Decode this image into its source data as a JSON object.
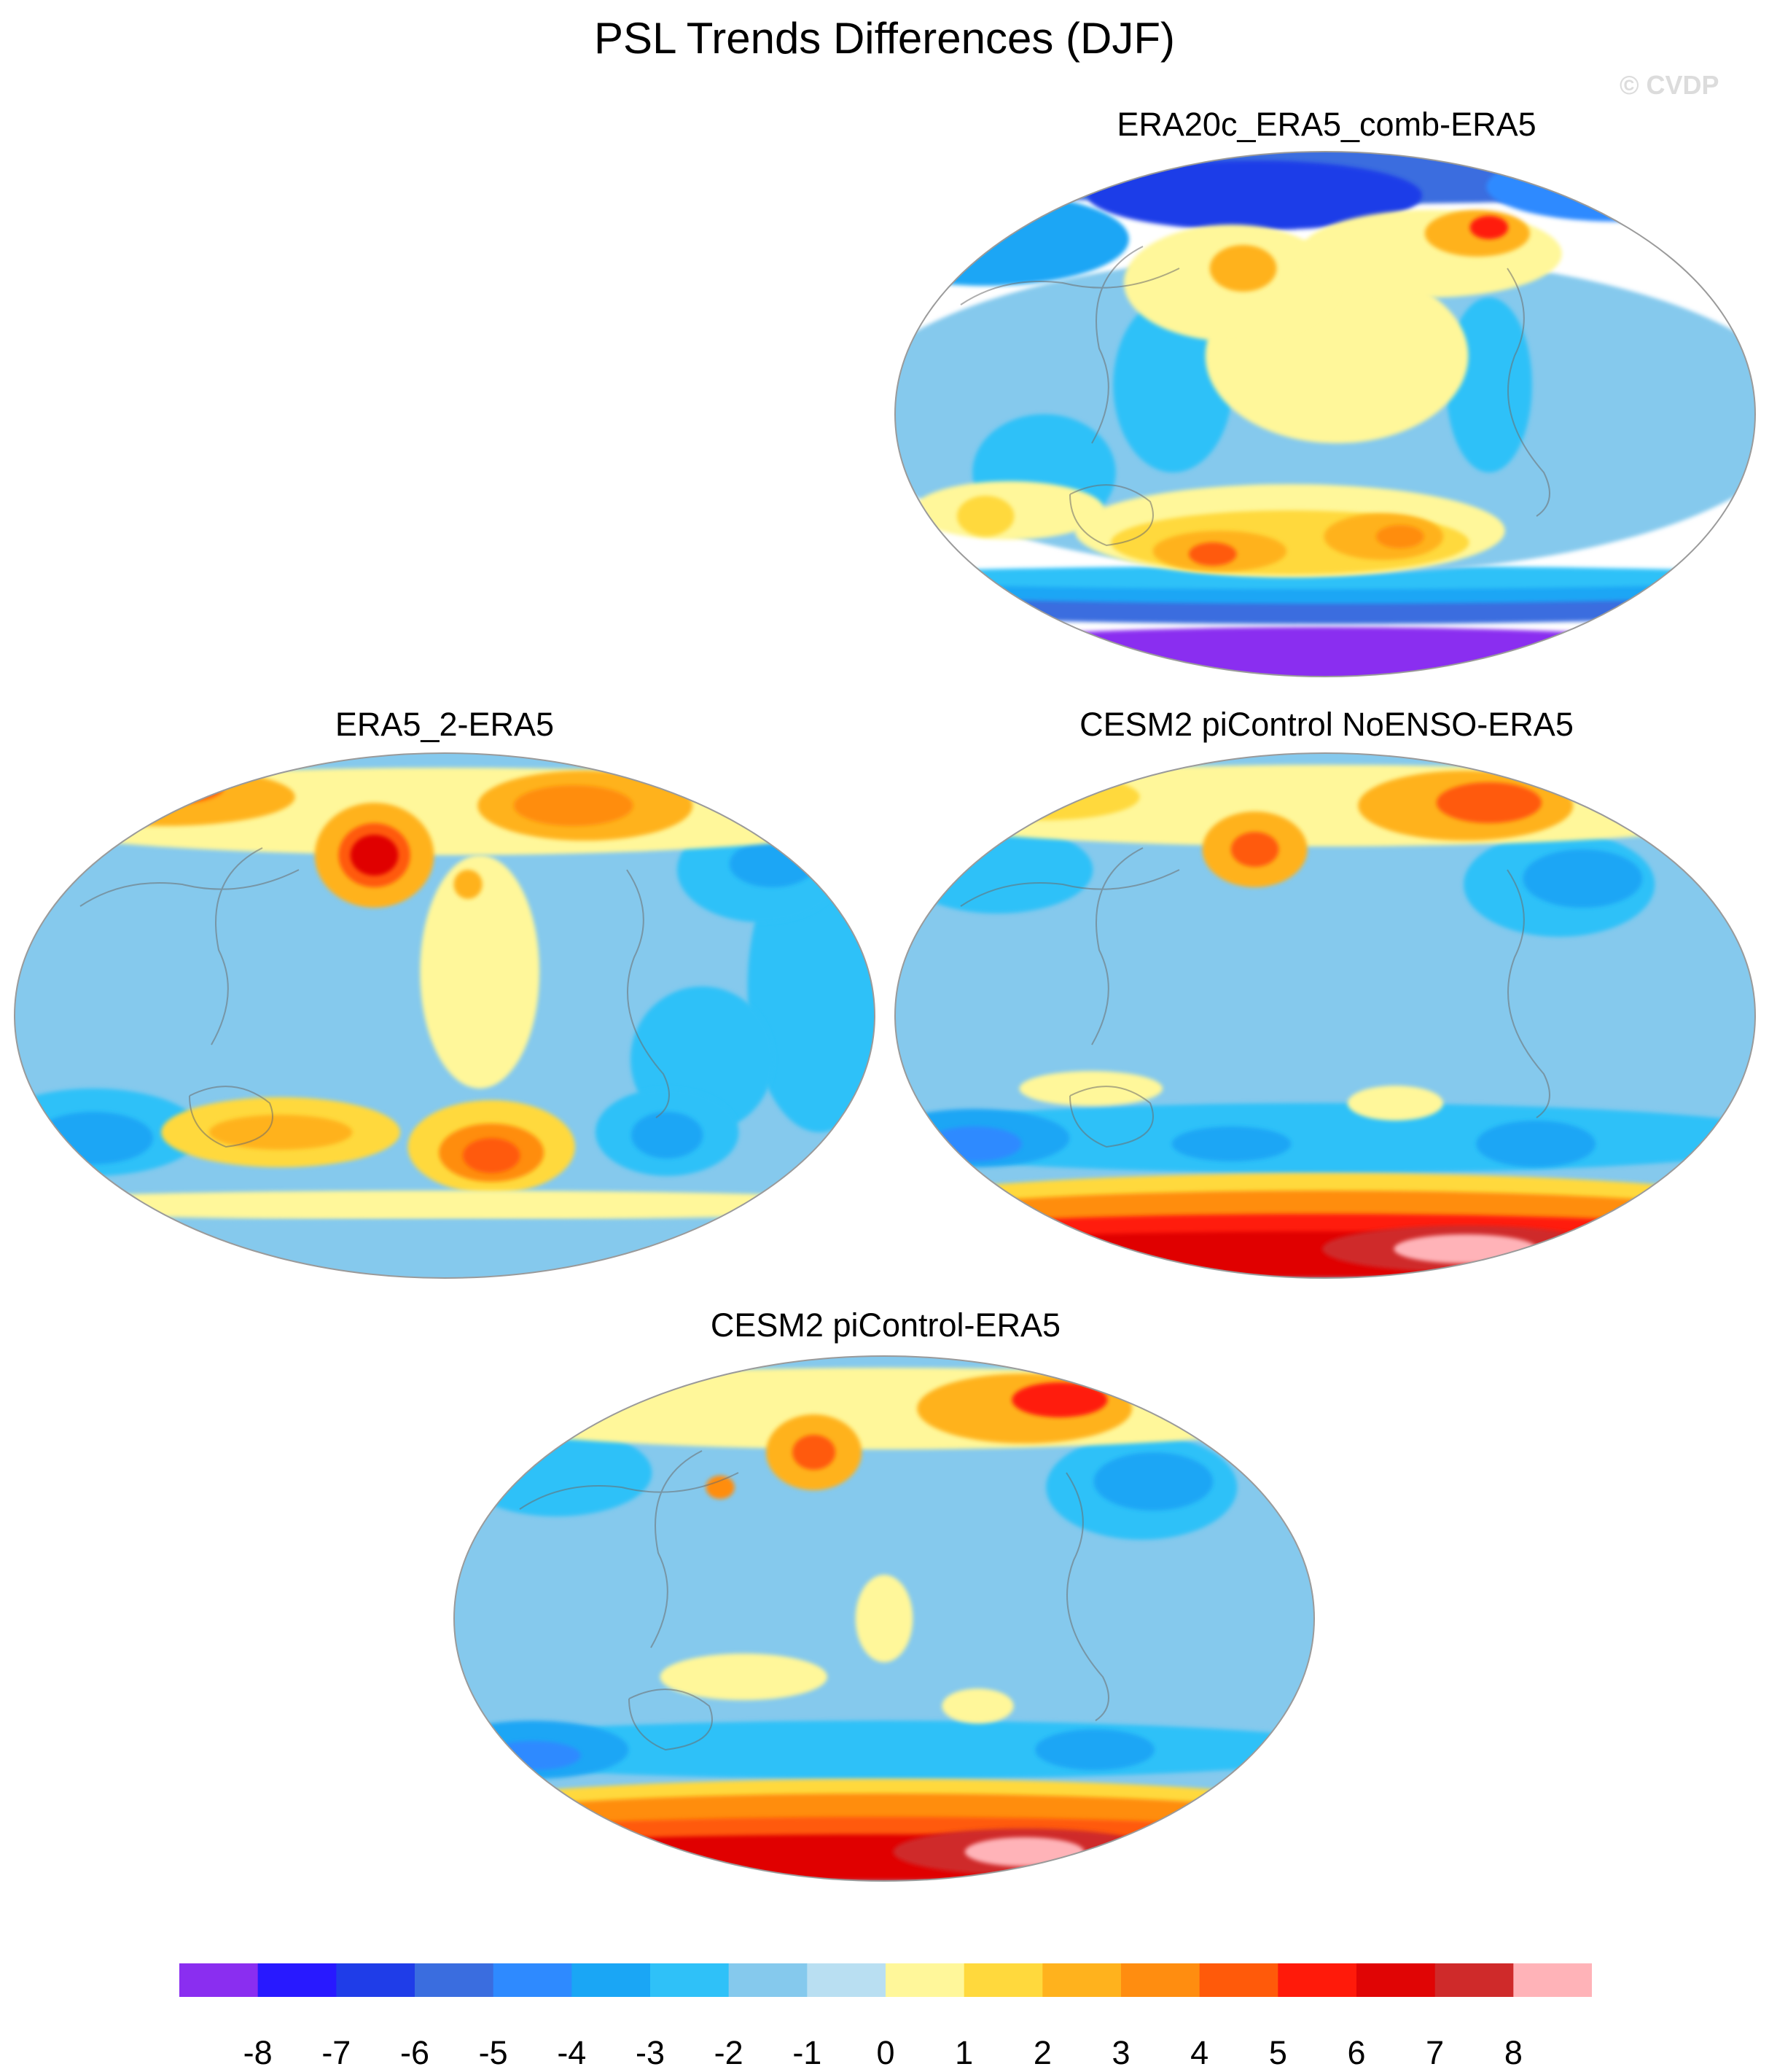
{
  "title": "PSL Trends Differences (DJF)",
  "watermark": "© CVDP",
  "panels": [
    {
      "id": "era20c",
      "title": "ERA20c_ERA5_comb-ERA5",
      "blobs": [
        {
          "lon": 0,
          "lat": -85,
          "rx": 200,
          "ry": 12,
          "c": -8
        },
        {
          "lon": 0,
          "lat": -66,
          "rx": 200,
          "ry": 6,
          "c": -5
        },
        {
          "lon": 0,
          "lat": -60,
          "rx": 200,
          "ry": 5,
          "c": -3
        },
        {
          "lon": 0,
          "lat": -56,
          "rx": 200,
          "ry": 4,
          "c": -2
        },
        {
          "lon": 0,
          "lat": 0,
          "rx": 200,
          "ry": 55,
          "c": -1
        },
        {
          "lon": 0,
          "lat": 82,
          "rx": 200,
          "ry": 10,
          "c": -5
        },
        {
          "lon": -30,
          "lat": 75,
          "rx": 70,
          "ry": 12,
          "c": -6
        },
        {
          "lon": -145,
          "lat": 60,
          "rx": 60,
          "ry": 16,
          "c": -3
        },
        {
          "lon": 125,
          "lat": 78,
          "rx": 55,
          "ry": 12,
          "c": -4
        },
        {
          "lon": 70,
          "lat": 10,
          "rx": 18,
          "ry": 30,
          "c": -2
        },
        {
          "lon": -65,
          "lat": 10,
          "rx": 25,
          "ry": 30,
          "c": -2
        },
        {
          "lon": -120,
          "lat": -20,
          "rx": 30,
          "ry": 20,
          "c": -2
        },
        {
          "lon": 5,
          "lat": 20,
          "rx": 55,
          "ry": 30,
          "c": 0
        },
        {
          "lon": -40,
          "lat": 45,
          "rx": 45,
          "ry": 20,
          "c": 0
        },
        {
          "lon": -35,
          "lat": 50,
          "rx": 14,
          "ry": 8,
          "c": 2
        },
        {
          "lon": 45,
          "lat": 55,
          "rx": 55,
          "ry": 15,
          "c": 0
        },
        {
          "lon": 65,
          "lat": 62,
          "rx": 22,
          "ry": 8,
          "c": 2
        },
        {
          "lon": 70,
          "lat": 64,
          "rx": 8,
          "ry": 4,
          "c": 5
        },
        {
          "lon": -135,
          "lat": -33,
          "rx": 40,
          "ry": 10,
          "c": 0
        },
        {
          "lon": -145,
          "lat": -35,
          "rx": 12,
          "ry": 7,
          "c": 1
        },
        {
          "lon": -15,
          "lat": -40,
          "rx": 90,
          "ry": 16,
          "c": 0
        },
        {
          "lon": -15,
          "lat": -44,
          "rx": 75,
          "ry": 11,
          "c": 1
        },
        {
          "lon": -45,
          "lat": -47,
          "rx": 28,
          "ry": 7,
          "c": 2
        },
        {
          "lon": -48,
          "lat": -48,
          "rx": 10,
          "ry": 4,
          "c": 4
        },
        {
          "lon": 25,
          "lat": -42,
          "rx": 25,
          "ry": 8,
          "c": 2
        },
        {
          "lon": 32,
          "lat": -42,
          "rx": 10,
          "ry": 4,
          "c": 3
        }
      ]
    },
    {
      "id": "era5_2",
      "title": "ERA5_2-ERA5",
      "blobs": [
        {
          "lon": 0,
          "lat": 0,
          "rx": 200,
          "ry": 100,
          "c": -1
        },
        {
          "lon": 160,
          "lat": 10,
          "rx": 30,
          "ry": 50,
          "c": -2
        },
        {
          "lon": 110,
          "lat": -15,
          "rx": 30,
          "ry": 25,
          "c": -2
        },
        {
          "lon": -150,
          "lat": -40,
          "rx": 45,
          "ry": 15,
          "c": -2
        },
        {
          "lon": -150,
          "lat": -42,
          "rx": 25,
          "ry": 9,
          "c": -3
        },
        {
          "lon": 95,
          "lat": -40,
          "rx": 30,
          "ry": 15,
          "c": -2
        },
        {
          "lon": 95,
          "lat": -41,
          "rx": 15,
          "ry": 8,
          "c": -3
        },
        {
          "lon": 135,
          "lat": 50,
          "rx": 35,
          "ry": 18,
          "c": -2
        },
        {
          "lon": 140,
          "lat": 52,
          "rx": 18,
          "ry": 8,
          "c": -3
        },
        {
          "lon": 15,
          "lat": 15,
          "rx": 25,
          "ry": 40,
          "c": 0
        },
        {
          "lon": 0,
          "lat": 70,
          "rx": 200,
          "ry": 15,
          "c": 0
        },
        {
          "lon": -120,
          "lat": 75,
          "rx": 55,
          "ry": 10,
          "c": 2
        },
        {
          "lon": -125,
          "lat": 78,
          "rx": 30,
          "ry": 6,
          "c": 4
        },
        {
          "lon": 60,
          "lat": 72,
          "rx": 45,
          "ry": 12,
          "c": 2
        },
        {
          "lon": 55,
          "lat": 72,
          "rx": 25,
          "ry": 7,
          "c": 3
        },
        {
          "lon": -30,
          "lat": 55,
          "rx": 25,
          "ry": 18,
          "c": 2
        },
        {
          "lon": -30,
          "lat": 55,
          "rx": 15,
          "ry": 11,
          "c": 4
        },
        {
          "lon": -30,
          "lat": 55,
          "rx": 10,
          "ry": 7,
          "c": 6
        },
        {
          "lon": 10,
          "lat": 45,
          "rx": 6,
          "ry": 5,
          "c": 2
        },
        {
          "lon": 20,
          "lat": -45,
          "rx": 35,
          "ry": 16,
          "c": 1
        },
        {
          "lon": 20,
          "lat": -47,
          "rx": 22,
          "ry": 10,
          "c": 3
        },
        {
          "lon": 20,
          "lat": -48,
          "rx": 12,
          "ry": 6,
          "c": 4
        },
        {
          "lon": -70,
          "lat": -40,
          "rx": 50,
          "ry": 12,
          "c": 1
        },
        {
          "lon": -70,
          "lat": -40,
          "rx": 30,
          "ry": 6,
          "c": 2
        },
        {
          "lon": 0,
          "lat": -65,
          "rx": 200,
          "ry": 5,
          "c": 0
        },
        {
          "lon": 0,
          "lat": -80,
          "rx": 200,
          "ry": 10,
          "c": -1
        }
      ]
    },
    {
      "id": "cesm2_noenso",
      "title": "CESM2 piControl NoENSO-ERA5",
      "blobs": [
        {
          "lon": 0,
          "lat": 0,
          "rx": 200,
          "ry": 100,
          "c": -1
        },
        {
          "lon": 0,
          "lat": -42,
          "rx": 200,
          "ry": 12,
          "c": -2
        },
        {
          "lon": -150,
          "lat": -42,
          "rx": 40,
          "ry": 10,
          "c": -3
        },
        {
          "lon": -150,
          "lat": -44,
          "rx": 20,
          "ry": 6,
          "c": -4
        },
        {
          "lon": -40,
          "lat": -44,
          "rx": 25,
          "ry": 6,
          "c": -3
        },
        {
          "lon": 90,
          "lat": -44,
          "rx": 25,
          "ry": 8,
          "c": -3
        },
        {
          "lon": 100,
          "lat": 45,
          "rx": 40,
          "ry": 18,
          "c": -2
        },
        {
          "lon": 110,
          "lat": 47,
          "rx": 25,
          "ry": 10,
          "c": -3
        },
        {
          "lon": -140,
          "lat": 50,
          "rx": 40,
          "ry": 15,
          "c": -2
        },
        {
          "lon": -100,
          "lat": -25,
          "rx": 30,
          "ry": 6,
          "c": 0
        },
        {
          "lon": 30,
          "lat": -30,
          "rx": 20,
          "ry": 6,
          "c": 0
        },
        {
          "lon": 0,
          "lat": 72,
          "rx": 200,
          "ry": 14,
          "c": 0
        },
        {
          "lon": 60,
          "lat": 72,
          "rx": 45,
          "ry": 12,
          "c": 2
        },
        {
          "lon": 70,
          "lat": 73,
          "rx": 22,
          "ry": 7,
          "c": 4
        },
        {
          "lon": -30,
          "lat": 57,
          "rx": 22,
          "ry": 13,
          "c": 2
        },
        {
          "lon": -30,
          "lat": 57,
          "rx": 10,
          "ry": 6,
          "c": 4
        },
        {
          "lon": -120,
          "lat": 75,
          "rx": 40,
          "ry": 8,
          "c": 1
        },
        {
          "lon": 0,
          "lat": -68,
          "rx": 200,
          "ry": 14,
          "c": 1
        },
        {
          "lon": 0,
          "lat": -72,
          "rx": 200,
          "ry": 12,
          "c": 3
        },
        {
          "lon": 0,
          "lat": -77,
          "rx": 200,
          "ry": 9,
          "c": 5
        },
        {
          "lon": 0,
          "lat": -82,
          "rx": 200,
          "ry": 8,
          "c": 6
        },
        {
          "lon": 60,
          "lat": -80,
          "rx": 60,
          "ry": 8,
          "c": 7
        },
        {
          "lon": 60,
          "lat": -80,
          "rx": 30,
          "ry": 5,
          "c": 8
        }
      ]
    },
    {
      "id": "cesm2",
      "title": "CESM2 piControl-ERA5",
      "blobs": [
        {
          "lon": 0,
          "lat": 0,
          "rx": 200,
          "ry": 100,
          "c": -1
        },
        {
          "lon": 0,
          "lat": -45,
          "rx": 200,
          "ry": 10,
          "c": -2
        },
        {
          "lon": -150,
          "lat": -45,
          "rx": 40,
          "ry": 10,
          "c": -3
        },
        {
          "lon": -150,
          "lat": -47,
          "rx": 20,
          "ry": 5,
          "c": -4
        },
        {
          "lon": 90,
          "lat": -45,
          "rx": 25,
          "ry": 7,
          "c": -3
        },
        {
          "lon": 110,
          "lat": 45,
          "rx": 40,
          "ry": 18,
          "c": -2
        },
        {
          "lon": 115,
          "lat": 47,
          "rx": 25,
          "ry": 10,
          "c": -3
        },
        {
          "lon": -140,
          "lat": 50,
          "rx": 40,
          "ry": 15,
          "c": -2
        },
        {
          "lon": -60,
          "lat": -20,
          "rx": 35,
          "ry": 8,
          "c": 0
        },
        {
          "lon": 0,
          "lat": 0,
          "rx": 12,
          "ry": 15,
          "c": 0
        },
        {
          "lon": 40,
          "lat": -30,
          "rx": 15,
          "ry": 6,
          "c": 0
        },
        {
          "lon": 0,
          "lat": 72,
          "rx": 200,
          "ry": 14,
          "c": 0
        },
        {
          "lon": 60,
          "lat": 72,
          "rx": 45,
          "ry": 12,
          "c": 2
        },
        {
          "lon": 75,
          "lat": 75,
          "rx": 20,
          "ry": 6,
          "c": 5
        },
        {
          "lon": -30,
          "lat": 57,
          "rx": 20,
          "ry": 13,
          "c": 2
        },
        {
          "lon": -30,
          "lat": 57,
          "rx": 9,
          "ry": 6,
          "c": 4
        },
        {
          "lon": -70,
          "lat": 45,
          "rx": 6,
          "ry": 4,
          "c": 3
        },
        {
          "lon": 0,
          "lat": -68,
          "rx": 200,
          "ry": 13,
          "c": 1
        },
        {
          "lon": 0,
          "lat": -72,
          "rx": 200,
          "ry": 12,
          "c": 3
        },
        {
          "lon": 0,
          "lat": -77,
          "rx": 200,
          "ry": 9,
          "c": 4
        },
        {
          "lon": 0,
          "lat": -82,
          "rx": 200,
          "ry": 8,
          "c": 6
        },
        {
          "lon": 60,
          "lat": -80,
          "rx": 55,
          "ry": 8,
          "c": 7
        },
        {
          "lon": 60,
          "lat": -80,
          "rx": 25,
          "ry": 5,
          "c": 8
        }
      ]
    }
  ],
  "colorbar": {
    "colors": [
      "#8a2ef0",
      "#2819ff",
      "#1f3de8",
      "#3a6ddf",
      "#2e8aff",
      "#1aa6f5",
      "#2fc1f8",
      "#85c9ed",
      "#b9dff2",
      "#fff79a",
      "#ffd93d",
      "#ffb21d",
      "#ff8d10",
      "#ff5a0a",
      "#ff1a0a",
      "#e00505",
      "#cf2a2a",
      "#ffb3b8"
    ],
    "labels": [
      "-8",
      "-7",
      "-6",
      "-5",
      "-4",
      "-3",
      "-2",
      "-1",
      "0",
      "1",
      "2",
      "3",
      "4",
      "5",
      "6",
      "7",
      "8"
    ]
  }
}
